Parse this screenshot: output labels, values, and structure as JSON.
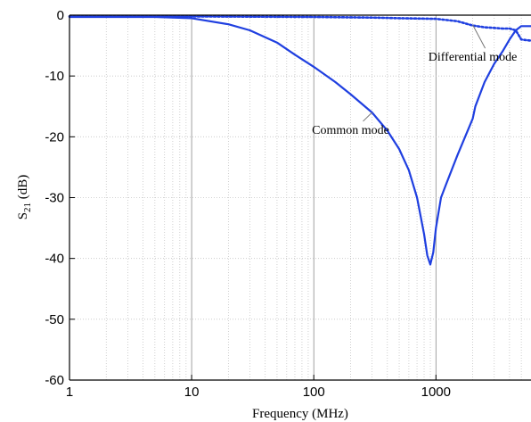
{
  "chart_data": {
    "type": "line",
    "title": "",
    "xlabel": "Frequency (MHz)",
    "ylabel_main": "S",
    "ylabel_sub": "21",
    "ylabel_unit": " (dB)",
    "x_scale": "log",
    "xlim": [
      1,
      6000
    ],
    "ylim": [
      -60,
      0
    ],
    "x_ticks": [
      1,
      10,
      100,
      1000
    ],
    "x_tick_labels": [
      "1",
      "10",
      "100",
      "1000"
    ],
    "y_ticks": [
      0,
      -10,
      -20,
      -30,
      -40,
      -50,
      -60
    ],
    "y_tick_labels": [
      "0",
      "-10",
      "-20",
      "-30",
      "-40",
      "-50",
      "-60"
    ],
    "grid": true,
    "line_color": "#1f3fe0",
    "series": [
      {
        "name": "Common mode",
        "style": "solid",
        "x": [
          1,
          5,
          10,
          20,
          30,
          50,
          70,
          100,
          150,
          200,
          300,
          400,
          500,
          600,
          700,
          800,
          850,
          900,
          950,
          1000,
          1100,
          1200,
          1500,
          2000,
          2100,
          2500,
          3000,
          3500,
          4000,
          4500,
          5000,
          6000
        ],
        "y": [
          -0.3,
          -0.3,
          -0.5,
          -1.5,
          -2.5,
          -4.5,
          -6.5,
          -8.5,
          -11,
          -13,
          -16,
          -19,
          -22,
          -25.5,
          -30,
          -36,
          -39.5,
          -41,
          -39,
          -35,
          -30,
          -28,
          -23,
          -17,
          -15,
          -11,
          -8,
          -6,
          -4,
          -2.5,
          -1.8,
          -1.8
        ]
      },
      {
        "name": "Differential mode",
        "style": "dotted",
        "x": [
          1,
          10,
          100,
          300,
          500,
          1000,
          1500,
          2000,
          2500,
          3000,
          3500,
          4000,
          4500,
          5000,
          6000
        ],
        "y": [
          -0.2,
          -0.2,
          -0.3,
          -0.4,
          -0.5,
          -0.6,
          -1.0,
          -1.7,
          -2.0,
          -2.1,
          -2.2,
          -2.2,
          -2.5,
          -4.0,
          -4.2
        ]
      }
    ],
    "annotations": [
      {
        "text": "Differential mode",
        "series": "Differential mode",
        "x": 2000,
        "y": -7.5,
        "point_x": 2000,
        "point_y": -1.6
      },
      {
        "text": "Common mode",
        "series": "Common mode",
        "x": 200,
        "y": -19.5,
        "point_x": 300,
        "point_y": -16
      }
    ]
  }
}
